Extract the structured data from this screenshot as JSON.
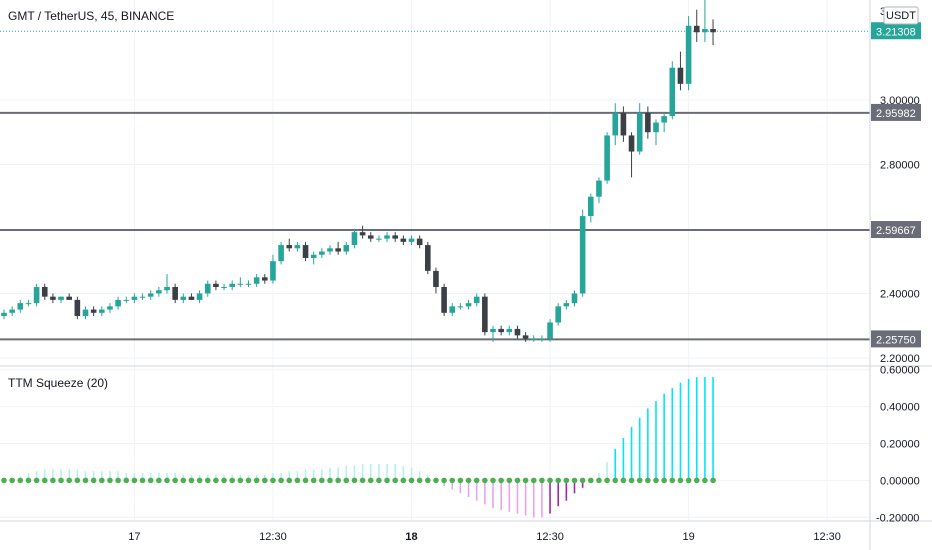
{
  "header": {
    "title": "GMT / TetherUS, 45, BINANCE",
    "currency": "USDT",
    "top_tick": "3."
  },
  "indicator": {
    "title": "TTM Squeeze (20)"
  },
  "colors": {
    "up": "#26a69a",
    "down": "#3d3f46",
    "level_line": "#6a6d78",
    "hist_pos_strong": "#00e5ff",
    "hist_pos_weak": "#b2f0f7",
    "hist_neg_strong": "#9c27b0",
    "hist_neg_weak": "#e8a4ee",
    "squeeze_dot": "#4caf50",
    "last_price": "#26a69a"
  },
  "price_axis": {
    "ticks": [
      "3.00000",
      "2.80000",
      "2.40000",
      "2.20000"
    ],
    "tick_values": [
      3.0,
      2.8,
      2.4,
      2.2
    ],
    "min": 2.175,
    "max": 3.31
  },
  "indicator_axis": {
    "ticks": [
      "0.60000",
      "0.40000",
      "0.20000",
      "0.00000",
      "-0.20000"
    ],
    "tick_values": [
      0.6,
      0.4,
      0.2,
      0.0,
      -0.2
    ],
    "min": -0.22,
    "max": 0.62
  },
  "levels": [
    {
      "label": "2.95982",
      "value": 2.95982
    },
    {
      "label": "2.59667",
      "value": 2.59667
    },
    {
      "label": "2.25750",
      "value": 2.2575
    }
  ],
  "last_price": {
    "label": "3.21308",
    "value": 3.21308
  },
  "time_axis": {
    "labels": [
      {
        "text": "17",
        "bar": 16,
        "bold": false
      },
      {
        "text": "12:30",
        "bar": 33,
        "bold": false
      },
      {
        "text": "18",
        "bar": 50,
        "bold": true
      },
      {
        "text": "12:30",
        "bar": 67,
        "bold": false
      },
      {
        "text": "19",
        "bar": 84,
        "bold": false
      },
      {
        "text": "12:30",
        "bar": 101,
        "bold": false
      }
    ]
  },
  "chart_data": {
    "type": "candlestick",
    "title": "GMT / TetherUS, 45, BINANCE",
    "ylabel": "USDT",
    "ylim": [
      2.175,
      3.31
    ],
    "candles": [
      [
        2.33,
        2.35,
        2.32,
        2.34
      ],
      [
        2.34,
        2.36,
        2.33,
        2.35
      ],
      [
        2.35,
        2.38,
        2.34,
        2.37
      ],
      [
        2.37,
        2.38,
        2.36,
        2.37
      ],
      [
        2.37,
        2.43,
        2.36,
        2.42
      ],
      [
        2.42,
        2.43,
        2.38,
        2.39
      ],
      [
        2.39,
        2.4,
        2.37,
        2.38
      ],
      [
        2.38,
        2.39,
        2.37,
        2.39
      ],
      [
        2.39,
        2.4,
        2.38,
        2.38
      ],
      [
        2.38,
        2.39,
        2.32,
        2.33
      ],
      [
        2.33,
        2.36,
        2.32,
        2.35
      ],
      [
        2.35,
        2.36,
        2.33,
        2.34
      ],
      [
        2.34,
        2.36,
        2.33,
        2.35
      ],
      [
        2.35,
        2.37,
        2.34,
        2.36
      ],
      [
        2.36,
        2.39,
        2.35,
        2.38
      ],
      [
        2.38,
        2.39,
        2.37,
        2.38
      ],
      [
        2.38,
        2.4,
        2.37,
        2.39
      ],
      [
        2.39,
        2.4,
        2.38,
        2.39
      ],
      [
        2.39,
        2.41,
        2.38,
        2.4
      ],
      [
        2.4,
        2.42,
        2.39,
        2.41
      ],
      [
        2.41,
        2.46,
        2.4,
        2.42
      ],
      [
        2.42,
        2.43,
        2.37,
        2.38
      ],
      [
        2.38,
        2.4,
        2.37,
        2.39
      ],
      [
        2.39,
        2.4,
        2.38,
        2.38
      ],
      [
        2.38,
        2.41,
        2.37,
        2.4
      ],
      [
        2.4,
        2.44,
        2.39,
        2.43
      ],
      [
        2.43,
        2.44,
        2.41,
        2.42
      ],
      [
        2.42,
        2.43,
        2.41,
        2.42
      ],
      [
        2.42,
        2.44,
        2.41,
        2.43
      ],
      [
        2.43,
        2.45,
        2.42,
        2.43
      ],
      [
        2.43,
        2.44,
        2.42,
        2.43
      ],
      [
        2.43,
        2.46,
        2.42,
        2.45
      ],
      [
        2.45,
        2.46,
        2.43,
        2.44
      ],
      [
        2.44,
        2.52,
        2.43,
        2.5
      ],
      [
        2.5,
        2.56,
        2.49,
        2.55
      ],
      [
        2.55,
        2.57,
        2.53,
        2.54
      ],
      [
        2.54,
        2.56,
        2.53,
        2.55
      ],
      [
        2.55,
        2.56,
        2.5,
        2.51
      ],
      [
        2.51,
        2.53,
        2.49,
        2.52
      ],
      [
        2.52,
        2.54,
        2.51,
        2.53
      ],
      [
        2.53,
        2.55,
        2.52,
        2.54
      ],
      [
        2.54,
        2.56,
        2.52,
        2.53
      ],
      [
        2.53,
        2.56,
        2.52,
        2.55
      ],
      [
        2.55,
        2.6,
        2.54,
        2.59
      ],
      [
        2.59,
        2.61,
        2.57,
        2.58
      ],
      [
        2.58,
        2.59,
        2.56,
        2.57
      ],
      [
        2.57,
        2.58,
        2.56,
        2.57
      ],
      [
        2.57,
        2.59,
        2.56,
        2.58
      ],
      [
        2.58,
        2.59,
        2.56,
        2.57
      ],
      [
        2.57,
        2.58,
        2.55,
        2.56
      ],
      [
        2.56,
        2.58,
        2.55,
        2.57
      ],
      [
        2.57,
        2.58,
        2.54,
        2.55
      ],
      [
        2.55,
        2.56,
        2.46,
        2.47
      ],
      [
        2.47,
        2.48,
        2.4,
        2.42
      ],
      [
        2.42,
        2.43,
        2.33,
        2.34
      ],
      [
        2.34,
        2.37,
        2.33,
        2.36
      ],
      [
        2.36,
        2.37,
        2.35,
        2.36
      ],
      [
        2.36,
        2.38,
        2.35,
        2.37
      ],
      [
        2.37,
        2.4,
        2.36,
        2.39
      ],
      [
        2.39,
        2.4,
        2.27,
        2.28
      ],
      [
        2.28,
        2.3,
        2.25,
        2.29
      ],
      [
        2.29,
        2.3,
        2.27,
        2.28
      ],
      [
        2.28,
        2.3,
        2.27,
        2.29
      ],
      [
        2.29,
        2.3,
        2.26,
        2.27
      ],
      [
        2.27,
        2.28,
        2.25,
        2.26
      ],
      [
        2.26,
        2.27,
        2.25,
        2.26
      ],
      [
        2.26,
        2.27,
        2.25,
        2.26
      ],
      [
        2.26,
        2.32,
        2.25,
        2.31
      ],
      [
        2.31,
        2.37,
        2.3,
        2.36
      ],
      [
        2.36,
        2.38,
        2.35,
        2.37
      ],
      [
        2.37,
        2.41,
        2.36,
        2.4
      ],
      [
        2.4,
        2.66,
        2.39,
        2.64
      ],
      [
        2.64,
        2.71,
        2.62,
        2.7
      ],
      [
        2.7,
        2.76,
        2.68,
        2.75
      ],
      [
        2.75,
        2.9,
        2.74,
        2.89
      ],
      [
        2.89,
        2.99,
        2.86,
        2.96
      ],
      [
        2.96,
        2.98,
        2.87,
        2.89
      ],
      [
        2.89,
        2.9,
        2.76,
        2.84
      ],
      [
        2.84,
        2.99,
        2.83,
        2.96
      ],
      [
        2.96,
        2.98,
        2.88,
        2.9
      ],
      [
        2.9,
        2.94,
        2.86,
        2.93
      ],
      [
        2.93,
        2.96,
        2.9,
        2.95
      ],
      [
        2.95,
        3.12,
        2.94,
        3.1
      ],
      [
        3.1,
        3.15,
        3.03,
        3.05
      ],
      [
        3.05,
        3.26,
        3.03,
        3.23
      ],
      [
        3.23,
        3.28,
        3.18,
        3.21
      ],
      [
        3.21,
        3.31,
        3.18,
        3.22
      ],
      [
        3.22,
        3.25,
        3.17,
        3.21
      ]
    ],
    "indicator": {
      "name": "TTM Squeeze (20)",
      "ylim": [
        -0.22,
        0.62
      ],
      "histogram": [
        0.0,
        0.0,
        0.02,
        0.04,
        0.05,
        0.06,
        0.06,
        0.06,
        0.06,
        0.06,
        0.05,
        0.05,
        0.05,
        0.05,
        0.05,
        0.04,
        0.04,
        0.04,
        0.04,
        0.04,
        0.04,
        0.04,
        0.03,
        0.03,
        0.03,
        0.03,
        0.03,
        0.03,
        0.03,
        0.03,
        0.03,
        0.03,
        0.03,
        0.04,
        0.04,
        0.05,
        0.05,
        0.06,
        0.06,
        0.06,
        0.07,
        0.07,
        0.08,
        0.08,
        0.09,
        0.09,
        0.09,
        0.09,
        0.09,
        0.08,
        0.07,
        0.05,
        0.03,
        0.0,
        -0.03,
        -0.05,
        -0.07,
        -0.09,
        -0.11,
        -0.13,
        -0.15,
        -0.16,
        -0.17,
        -0.18,
        -0.19,
        -0.2,
        -0.2,
        -0.18,
        -0.14,
        -0.11,
        -0.07,
        -0.04,
        0.0,
        0.04,
        0.1,
        0.17,
        0.23,
        0.29,
        0.34,
        0.39,
        0.43,
        0.47,
        0.5,
        0.53,
        0.55,
        0.56,
        0.56,
        0.56
      ],
      "squeeze_dot": 0.0
    }
  }
}
